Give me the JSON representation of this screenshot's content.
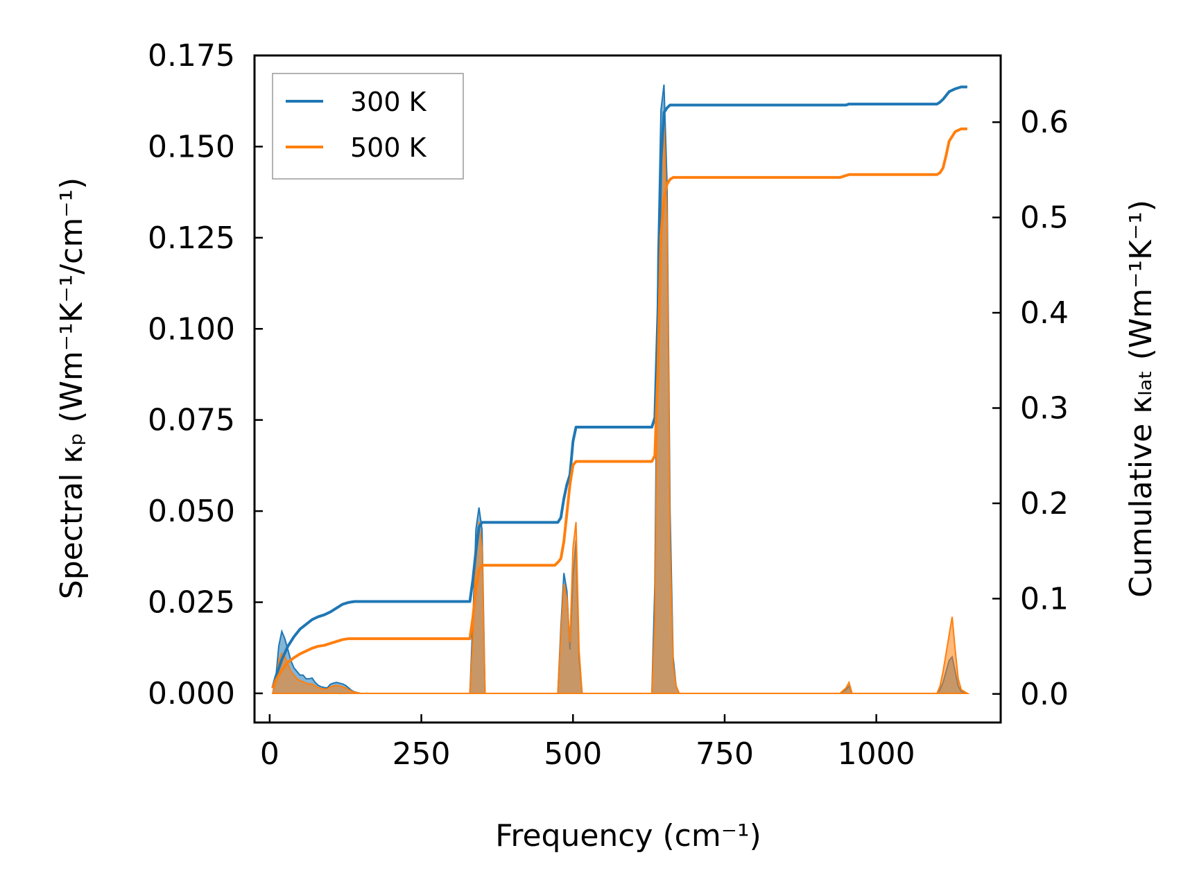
{
  "chart_data": {
    "type": "line",
    "xlabel": "Frequency (cm⁻¹)",
    "ylabel_left": "Spectral κₚ (Wm⁻¹K⁻¹/cm⁻¹)",
    "ylabel_right": "Cumulative κₗₐₜ (Wm⁻¹K⁻¹)",
    "xlim": [
      -25,
      1205
    ],
    "ylim_left": [
      -0.008,
      0.175
    ],
    "ylim_right": [
      -0.03,
      0.67
    ],
    "x_ticks": [
      0,
      250,
      500,
      750,
      1000
    ],
    "x_tick_labels": [
      "0",
      "250",
      "500",
      "750",
      "1000"
    ],
    "y_left_ticks": [
      0.0,
      0.025,
      0.05,
      0.075,
      0.1,
      0.125,
      0.15,
      0.175
    ],
    "y_left_tick_labels": [
      "0.000",
      "0.025",
      "0.050",
      "0.075",
      "0.100",
      "0.125",
      "0.150",
      "0.175"
    ],
    "y_right_ticks": [
      0.0,
      0.1,
      0.2,
      0.3,
      0.4,
      0.5,
      0.6
    ],
    "y_right_tick_labels": [
      "0.0",
      "0.1",
      "0.2",
      "0.3",
      "0.4",
      "0.5",
      "0.6"
    ],
    "legend": {
      "position": "top-left",
      "entries": [
        {
          "label": "300 K",
          "color": "#1f77b4"
        },
        {
          "label": "500 K",
          "color": "#ff7f0e"
        }
      ]
    },
    "series": [
      {
        "name": "300 K",
        "color": "#1f77b4",
        "spectral": {
          "x": [
            5,
            10,
            15,
            20,
            25,
            30,
            35,
            40,
            45,
            50,
            55,
            60,
            65,
            70,
            75,
            80,
            85,
            90,
            95,
            100,
            105,
            110,
            115,
            120,
            125,
            130,
            135,
            140,
            150,
            330,
            335,
            340,
            345,
            350,
            355,
            475,
            480,
            485,
            490,
            495,
            500,
            505,
            510,
            515,
            630,
            635,
            640,
            645,
            650,
            655,
            660,
            665,
            670,
            675,
            940,
            950,
            955,
            960,
            1100,
            1105,
            1110,
            1115,
            1120,
            1125,
            1130,
            1135,
            1140,
            1150
          ],
          "y": [
            0.0,
            0.004,
            0.013,
            0.017,
            0.015,
            0.012,
            0.009,
            0.007,
            0.006,
            0.005,
            0.005,
            0.004,
            0.004,
            0.0042,
            0.003,
            0.0022,
            0.0018,
            0.0016,
            0.0015,
            0.0025,
            0.0028,
            0.003,
            0.0028,
            0.0026,
            0.0022,
            0.0015,
            0.0008,
            0.0004,
            0.0,
            0.0,
            0.02,
            0.045,
            0.051,
            0.045,
            0.0,
            0.0,
            0.018,
            0.033,
            0.028,
            0.012,
            0.032,
            0.042,
            0.01,
            0.0,
            0.0,
            0.03,
            0.12,
            0.16,
            0.167,
            0.14,
            0.05,
            0.01,
            0.002,
            0.0,
            0.0,
            0.001,
            0.002,
            0.0,
            0.0,
            0.001,
            0.003,
            0.006,
            0.009,
            0.01,
            0.006,
            0.002,
            0.0005,
            0.0
          ]
        },
        "cumulative": {
          "x": [
            5,
            10,
            20,
            30,
            40,
            50,
            60,
            70,
            80,
            90,
            100,
            110,
            120,
            130,
            140,
            150,
            330,
            335,
            340,
            345,
            350,
            355,
            470,
            475,
            480,
            485,
            490,
            495,
            500,
            505,
            510,
            630,
            635,
            640,
            645,
            650,
            655,
            660,
            665,
            670,
            680,
            940,
            950,
            955,
            960,
            1000,
            1100,
            1105,
            1110,
            1115,
            1120,
            1130,
            1140,
            1150
          ],
          "y": [
            0.006,
            0.018,
            0.036,
            0.05,
            0.06,
            0.068,
            0.073,
            0.078,
            0.081,
            0.083,
            0.086,
            0.09,
            0.094,
            0.096,
            0.097,
            0.097,
            0.097,
            0.12,
            0.15,
            0.175,
            0.18,
            0.18,
            0.18,
            0.18,
            0.185,
            0.205,
            0.22,
            0.23,
            0.265,
            0.28,
            0.28,
            0.28,
            0.29,
            0.4,
            0.56,
            0.61,
            0.615,
            0.618,
            0.618,
            0.618,
            0.618,
            0.618,
            0.618,
            0.619,
            0.619,
            0.619,
            0.619,
            0.621,
            0.624,
            0.628,
            0.632,
            0.635,
            0.637,
            0.637
          ]
        }
      },
      {
        "name": "500 K",
        "color": "#ff7f0e",
        "spectral": {
          "x": [
            5,
            10,
            15,
            20,
            25,
            30,
            35,
            40,
            45,
            50,
            55,
            60,
            65,
            70,
            75,
            80,
            85,
            90,
            95,
            100,
            105,
            110,
            115,
            120,
            125,
            130,
            135,
            140,
            150,
            330,
            335,
            340,
            345,
            350,
            355,
            475,
            480,
            485,
            490,
            495,
            500,
            505,
            510,
            515,
            630,
            635,
            640,
            645,
            650,
            655,
            660,
            665,
            670,
            675,
            940,
            950,
            955,
            960,
            1100,
            1105,
            1110,
            1115,
            1120,
            1125,
            1130,
            1135,
            1140,
            1150
          ],
          "y": [
            0.0,
            0.003,
            0.009,
            0.011,
            0.01,
            0.008,
            0.006,
            0.005,
            0.004,
            0.0035,
            0.0032,
            0.0028,
            0.0025,
            0.0026,
            0.002,
            0.0016,
            0.0013,
            0.0012,
            0.0012,
            0.0018,
            0.002,
            0.0022,
            0.002,
            0.0018,
            0.0015,
            0.001,
            0.0006,
            0.0003,
            0.0,
            0.0,
            0.015,
            0.04,
            0.047,
            0.04,
            0.0,
            0.0,
            0.016,
            0.03,
            0.026,
            0.014,
            0.04,
            0.047,
            0.012,
            0.0,
            0.0,
            0.02,
            0.1,
            0.14,
            0.157,
            0.13,
            0.04,
            0.008,
            0.002,
            0.0,
            0.0,
            0.0015,
            0.003,
            0.0,
            0.0,
            0.002,
            0.006,
            0.011,
            0.016,
            0.021,
            0.012,
            0.004,
            0.001,
            0.0
          ]
        },
        "cumulative": {
          "x": [
            5,
            10,
            20,
            30,
            40,
            50,
            60,
            70,
            80,
            90,
            100,
            110,
            120,
            130,
            140,
            150,
            330,
            335,
            340,
            345,
            350,
            355,
            470,
            475,
            480,
            485,
            490,
            495,
            500,
            505,
            510,
            630,
            635,
            640,
            645,
            650,
            655,
            660,
            665,
            670,
            680,
            940,
            950,
            955,
            960,
            1000,
            1100,
            1105,
            1110,
            1115,
            1120,
            1130,
            1140,
            1150
          ],
          "y": [
            0.006,
            0.014,
            0.025,
            0.033,
            0.038,
            0.042,
            0.045,
            0.048,
            0.05,
            0.051,
            0.053,
            0.055,
            0.057,
            0.058,
            0.058,
            0.058,
            0.058,
            0.08,
            0.11,
            0.13,
            0.135,
            0.135,
            0.135,
            0.138,
            0.142,
            0.16,
            0.19,
            0.22,
            0.24,
            0.244,
            0.244,
            0.244,
            0.25,
            0.34,
            0.48,
            0.52,
            0.535,
            0.54,
            0.542,
            0.542,
            0.542,
            0.542,
            0.544,
            0.545,
            0.545,
            0.545,
            0.545,
            0.547,
            0.552,
            0.565,
            0.58,
            0.59,
            0.593,
            0.593
          ]
        }
      }
    ]
  }
}
